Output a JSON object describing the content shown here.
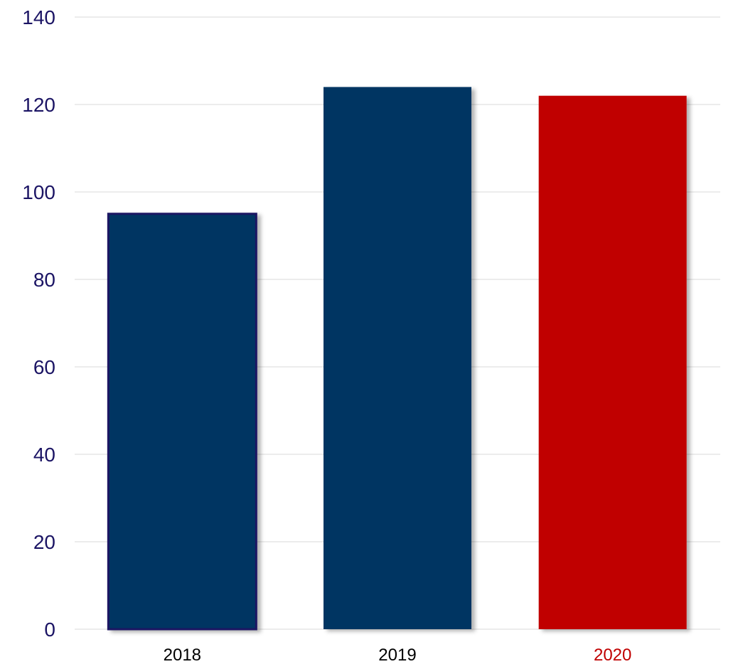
{
  "colors": {
    "background": "#ffffff",
    "gridline": "#d9d9d9",
    "axis_label": "#1b1464",
    "category_label_default": "#000000",
    "category_label_highlight": "#c00000",
    "bar_outline_2018": "#1b1464"
  },
  "chart_data": {
    "type": "bar",
    "title": "",
    "xlabel": "",
    "ylabel": "",
    "categories": [
      "2018",
      "2019",
      "2020"
    ],
    "values": [
      95,
      124,
      122
    ],
    "bar_colors": [
      "#003462",
      "#003462",
      "#c00000"
    ],
    "label_colors": [
      "#000000",
      "#000000",
      "#c00000"
    ],
    "ylim": [
      0,
      140
    ],
    "y_ticks": [
      0,
      20,
      40,
      60,
      80,
      100,
      120,
      140
    ],
    "grid": true,
    "legend": "none"
  }
}
